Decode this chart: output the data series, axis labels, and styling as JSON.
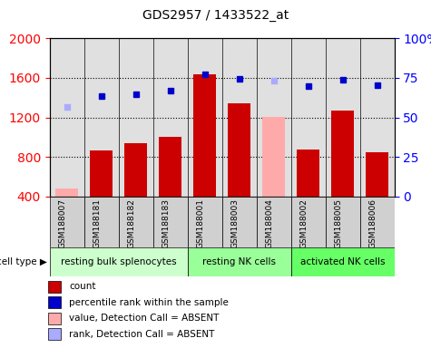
{
  "title": "GDS2957 / 1433522_at",
  "samples": [
    "GSM188007",
    "GSM188181",
    "GSM188182",
    "GSM188183",
    "GSM188001",
    "GSM188003",
    "GSM188004",
    "GSM188002",
    "GSM188005",
    "GSM188006"
  ],
  "groups": [
    {
      "label": "resting bulk splenocytes",
      "indices": [
        0,
        1,
        2,
        3
      ],
      "color": "#ccffcc"
    },
    {
      "label": "resting NK cells",
      "indices": [
        4,
        5,
        6
      ],
      "color": "#99ff99"
    },
    {
      "label": "activated NK cells",
      "indices": [
        7,
        8,
        9
      ],
      "color": "#66ff66"
    }
  ],
  "bar_values": [
    480,
    870,
    940,
    1000,
    1640,
    1340,
    1210,
    880,
    1270,
    850
  ],
  "bar_colors": [
    "#ffaaaa",
    "#cc0000",
    "#cc0000",
    "#cc0000",
    "#cc0000",
    "#cc0000",
    "#ffaaaa",
    "#cc0000",
    "#cc0000",
    "#cc0000"
  ],
  "dot_values": [
    1310,
    1420,
    1430,
    1470,
    1640,
    1590,
    1570,
    1520,
    1580,
    1530
  ],
  "dot_colors": [
    "#aaaaff",
    "#0000cc",
    "#0000cc",
    "#0000cc",
    "#0000cc",
    "#0000cc",
    "#aaaaff",
    "#0000cc",
    "#0000cc",
    "#0000cc"
  ],
  "ylim_left": [
    400,
    2000
  ],
  "ylim_right": [
    0,
    100
  ],
  "yticks_left": [
    400,
    800,
    1200,
    1600,
    2000
  ],
  "yticks_right": [
    0,
    25,
    50,
    75,
    100
  ],
  "grid_values": [
    800,
    1200,
    1600
  ],
  "legend_items": [
    {
      "label": "count",
      "color": "#cc0000"
    },
    {
      "label": "percentile rank within the sample",
      "color": "#0000cc"
    },
    {
      "label": "value, Detection Call = ABSENT",
      "color": "#ffaaaa"
    },
    {
      "label": "rank, Detection Call = ABSENT",
      "color": "#aaaaff"
    }
  ],
  "cell_type_label": "cell type",
  "plot_bg_color": "#e0e0e0"
}
